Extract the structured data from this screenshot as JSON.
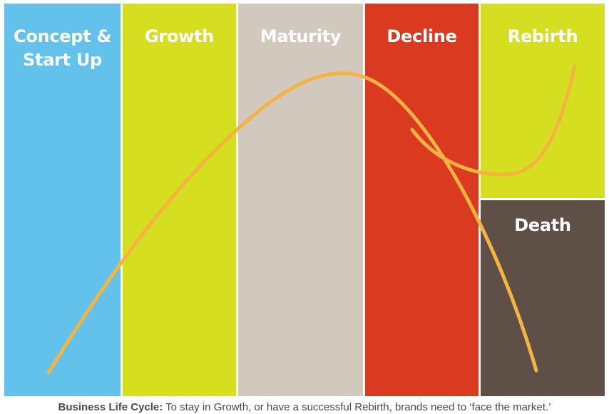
{
  "stages": [
    {
      "id": "concept",
      "label": "Concept &\nStart Up",
      "color": "#62c2ec"
    },
    {
      "id": "growth",
      "label": "Growth",
      "color": "#d5df1f"
    },
    {
      "id": "maturity",
      "label": "Maturity",
      "color": "#d1c8be"
    },
    {
      "id": "decline",
      "label": "Decline",
      "color": "#d93a20"
    },
    {
      "id": "rebirth",
      "label": "Rebirth",
      "color": "#d5df1f"
    },
    {
      "id": "death",
      "label": "Death",
      "color": "#5e4f47"
    }
  ],
  "curve_color": "#f5b342",
  "caption": {
    "label": "Business Life Cycle:",
    "text": " To stay in Growth, or have a successful Rebirth, brands need to ‘face the market.’"
  }
}
